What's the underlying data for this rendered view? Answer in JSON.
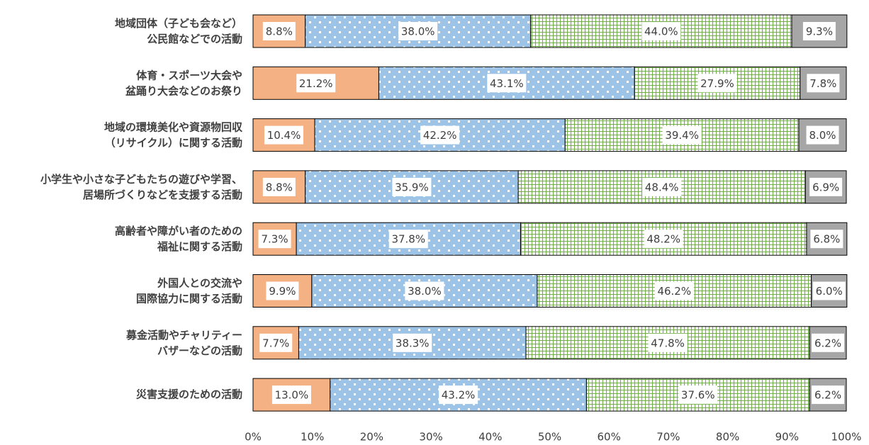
{
  "chart_data": {
    "type": "stacked_barh",
    "categories": [
      "地域団体（子ども会など）\n公民館などでの活動",
      "体育・スポーツ大会や\n盆踊り大会などのお祭り",
      "地域の環境美化や資源物回収\n（リサイクル）に関する活動",
      "小学生や小さな子どもたちの遊びや学習、\n居場所づくりなどを支援する活動",
      "高齢者や障がい者のための\n福祉に関する活動",
      "外国人との交流や\n国際協力に関する活動",
      "募金活動やチャリティー\nバザーなどの活動",
      "災害支援のための活動"
    ],
    "series": [
      {
        "color": "#f4b183",
        "pattern": "solid",
        "values": [
          8.8,
          21.2,
          10.4,
          8.8,
          7.3,
          9.9,
          7.7,
          13.0
        ],
        "value_labels": [
          "8.8%",
          "21.2%",
          "10.4%",
          "8.8%",
          "7.3%",
          "9.9%",
          "7.7%",
          "13.0%"
        ]
      },
      {
        "color": "#9dc3e6",
        "pattern": "dots",
        "values": [
          38.0,
          43.1,
          42.2,
          35.9,
          37.8,
          38.0,
          38.3,
          43.2
        ],
        "value_labels": [
          "38.0%",
          "43.1%",
          "42.2%",
          "35.9%",
          "37.8%",
          "38.0%",
          "38.3%",
          "43.2%"
        ]
      },
      {
        "color": "#70ad47",
        "pattern": "grid",
        "values": [
          44.0,
          27.9,
          39.4,
          48.4,
          48.2,
          46.2,
          47.8,
          37.6
        ],
        "value_labels": [
          "44.0%",
          "27.9%",
          "39.4%",
          "48.4%",
          "48.2%",
          "46.2%",
          "47.8%",
          "37.6%"
        ]
      },
      {
        "color": "#a6a6a6",
        "pattern": "solid",
        "values": [
          9.3,
          7.8,
          8.0,
          6.9,
          6.8,
          6.0,
          6.2,
          6.2
        ],
        "value_labels": [
          "9.3%",
          "7.8%",
          "8.0%",
          "6.9%",
          "6.8%",
          "6.0%",
          "6.2%",
          "6.2%"
        ]
      }
    ],
    "xlim": [
      0,
      100
    ],
    "xticks": [
      {
        "value": 0,
        "label": "0%"
      },
      {
        "value": 10,
        "label": "10%"
      },
      {
        "value": 20,
        "label": "20%"
      },
      {
        "value": 30,
        "label": "30%"
      },
      {
        "value": 40,
        "label": "40%"
      },
      {
        "value": 50,
        "label": "50%"
      },
      {
        "value": 60,
        "label": "60%"
      },
      {
        "value": 70,
        "label": "70%"
      },
      {
        "value": 80,
        "label": "80%"
      },
      {
        "value": 90,
        "label": "90%"
      },
      {
        "value": 100,
        "label": "100%"
      }
    ]
  }
}
